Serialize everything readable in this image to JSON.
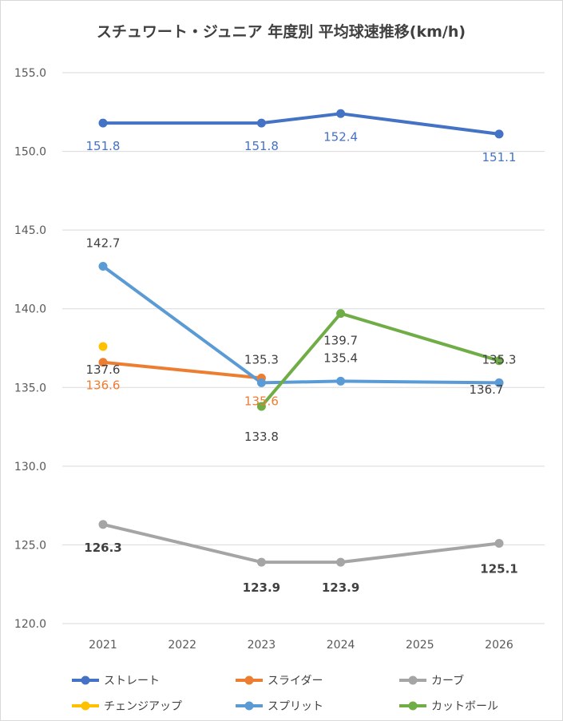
{
  "chart_data": {
    "type": "line",
    "title": "スチュワート・ジュニア 年度別 平均球速推移(km/h)",
    "xlabel": "",
    "ylabel": "",
    "categories": [
      "2021",
      "2022",
      "2023",
      "2024",
      "2025",
      "2026"
    ],
    "ylim": [
      120,
      155
    ],
    "yticks": [
      "120.0",
      "125.0",
      "130.0",
      "135.0",
      "140.0",
      "145.0",
      "150.0",
      "155.0"
    ],
    "grid": true,
    "legend_position": "bottom",
    "series": [
      {
        "name": "ストレート",
        "color": "#4472C4",
        "values": [
          151.8,
          null,
          151.8,
          152.4,
          null,
          151.1
        ],
        "labels": [
          "151.8",
          null,
          "151.8",
          "152.4",
          null,
          "151.1"
        ],
        "label_color": "#4472C4",
        "label_bold": false
      },
      {
        "name": "スライダー",
        "color": "#ED7D31",
        "values": [
          136.6,
          null,
          135.6,
          null,
          null,
          null
        ],
        "labels": [
          "136.6",
          null,
          "135.6",
          null,
          null,
          null
        ],
        "label_color": "#ED7D31",
        "label_bold": false
      },
      {
        "name": "カーブ",
        "color": "#A5A5A5",
        "values": [
          126.3,
          null,
          123.9,
          123.9,
          null,
          125.1
        ],
        "labels": [
          "126.3",
          null,
          "123.9",
          "123.9",
          null,
          "125.1"
        ],
        "label_color": "#404040",
        "label_bold": true
      },
      {
        "name": "チェンジアップ",
        "color": "#FFC000",
        "values": [
          137.6,
          null,
          null,
          null,
          null,
          null
        ],
        "labels": [
          "137.6",
          null,
          null,
          null,
          null,
          null
        ],
        "label_color": "#404040",
        "label_bold": false
      },
      {
        "name": "スプリット",
        "color": "#5B9BD5",
        "values": [
          142.7,
          null,
          135.3,
          135.4,
          null,
          135.3
        ],
        "labels": [
          "142.7",
          null,
          "135.3",
          "135.4",
          null,
          "135.3"
        ],
        "label_color": "#404040",
        "label_bold": false
      },
      {
        "name": "カットボール",
        "color": "#70AD47",
        "values": [
          null,
          null,
          133.8,
          139.7,
          null,
          136.7
        ],
        "labels": [
          null,
          null,
          "133.8",
          "139.7",
          null,
          "136.7"
        ],
        "label_color": "#404040",
        "label_bold": false
      }
    ]
  }
}
